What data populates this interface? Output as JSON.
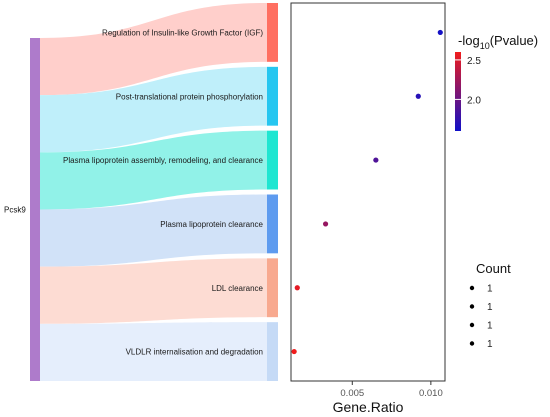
{
  "chart_data": {
    "type": "scatter",
    "subtype": "sankey-dot-plot",
    "source": "Pcsk9",
    "categories": [
      "Regulation of Insulin-like Growth Factor (IGF)",
      "Post-translational protein phosphorylation",
      "Plasma lipoprotein assembly, remodeling, and clearance",
      "Plasma lipoprotein clearance",
      "LDL clearance",
      "VLDLR internalisation and degradation"
    ],
    "gene_ratio": [
      0.0106,
      0.0092,
      0.0065,
      0.0033,
      0.0015,
      0.0013
    ],
    "neg_log10_pvalue": [
      1.62,
      1.7,
      1.88,
      2.2,
      2.55,
      2.6
    ],
    "count": [
      1,
      1,
      1,
      1,
      1,
      1
    ],
    "xlabel": "Gene.Ratio",
    "ylabel": "",
    "xlim": [
      0.0011,
      0.0109
    ],
    "x_ticks": [
      0.005,
      0.01
    ],
    "x_tick_labels": [
      "0.005",
      "0.010"
    ],
    "grid": false,
    "pathway_colors": [
      "#FF6F61",
      "#26C6F0",
      "#1EE6D1",
      "#5E9BEF",
      "#F8A98F",
      "#C5DAF6"
    ],
    "flow_colors": [
      "#FFCFCB",
      "#BFEFFA",
      "#91F2E8",
      "#D1E2F8",
      "#FDDCD3",
      "#E5EEFC"
    ],
    "source_color": "#AE7BCB",
    "color_legend": {
      "title": "-log",
      "title_sub": "10",
      "title_suffix": "(Pvalue)",
      "ticks": [
        2.5,
        2.0
      ],
      "tick_labels": [
        "2.5",
        "2.0"
      ],
      "range": [
        1.6,
        2.6
      ],
      "low_color": "#1010C8",
      "high_color": "#F01C1C",
      "position": "top-right"
    },
    "size_legend": {
      "title": "Count",
      "values": [
        1,
        1,
        1,
        1
      ],
      "labels": [
        "1",
        "1",
        "1",
        "1"
      ],
      "position": "right"
    }
  }
}
